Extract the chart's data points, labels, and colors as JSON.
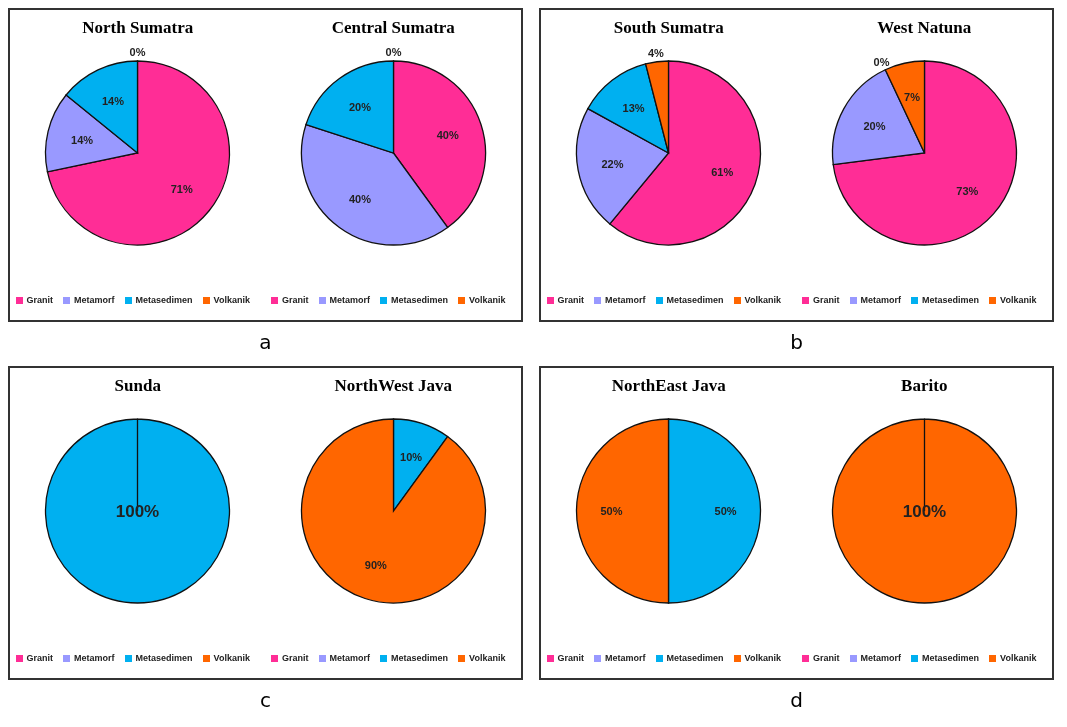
{
  "chart_data": [
    {
      "type": "pie",
      "title": "North Sumatra",
      "categories": [
        "Granit",
        "Metamorf",
        "Metasedimen",
        "Volkanik"
      ],
      "values": [
        71,
        14,
        14,
        0
      ],
      "value_labels": [
        "71%",
        "14%",
        "14%",
        "0%"
      ],
      "colors": [
        "#ff2d96",
        "#9999ff",
        "#00b0f0",
        "#ff6600"
      ],
      "legend": "bottom",
      "annotations": [
        "a"
      ]
    },
    {
      "type": "pie",
      "title": "Central Sumatra",
      "categories": [
        "Granit",
        "Metamorf",
        "Metasedimen",
        "Volkanik"
      ],
      "values": [
        40,
        40,
        20,
        0
      ],
      "value_labels": [
        "40%",
        "40%",
        "20%",
        "0%"
      ],
      "colors": [
        "#ff2d96",
        "#9999ff",
        "#00b0f0",
        "#ff6600"
      ],
      "legend": "bottom"
    },
    {
      "type": "pie",
      "title": "South Sumatra",
      "categories": [
        "Granit",
        "Metamorf",
        "Metasedimen",
        "Volkanik"
      ],
      "values": [
        61,
        22,
        13,
        4
      ],
      "value_labels": [
        "61%",
        "22%",
        "13%",
        "4%"
      ],
      "colors": [
        "#ff2d96",
        "#9999ff",
        "#00b0f0",
        "#ff6600"
      ],
      "legend": "bottom",
      "annotations": [
        "b"
      ]
    },
    {
      "type": "pie",
      "title": "West Natuna",
      "categories": [
        "Granit",
        "Metamorf",
        "Metasedimen",
        "Volkanik"
      ],
      "values": [
        73,
        20,
        0,
        7
      ],
      "value_labels": [
        "73%",
        "20%",
        "0%",
        "7%"
      ],
      "colors": [
        "#ff2d96",
        "#9999ff",
        "#00b0f0",
        "#ff6600"
      ],
      "legend": "bottom"
    },
    {
      "type": "pie",
      "title": "Sunda",
      "categories": [
        "Granit",
        "Metamorf",
        "Metasedimen",
        "Volkanik"
      ],
      "values": [
        0,
        0,
        100,
        0
      ],
      "value_labels": [
        null,
        null,
        "100%",
        null
      ],
      "colors": [
        "#ff2d96",
        "#9999ff",
        "#00b0f0",
        "#ff6600"
      ],
      "legend": "bottom",
      "annotations": [
        "c"
      ]
    },
    {
      "type": "pie",
      "title": "NorthWest Java",
      "categories": [
        "Granit",
        "Metamorf",
        "Metasedimen",
        "Volkanik"
      ],
      "values": [
        0,
        0,
        10,
        90
      ],
      "value_labels": [
        null,
        null,
        "10%",
        "90%"
      ],
      "colors": [
        "#ff2d96",
        "#9999ff",
        "#00b0f0",
        "#ff6600"
      ],
      "legend": "bottom"
    },
    {
      "type": "pie",
      "title": "NorthEast Java",
      "categories": [
        "Granit",
        "Metamorf",
        "Metasedimen",
        "Volkanik"
      ],
      "values": [
        0,
        0,
        50,
        50
      ],
      "value_labels": [
        null,
        null,
        "50%",
        "50%"
      ],
      "colors": [
        "#ff2d96",
        "#9999ff",
        "#00b0f0",
        "#ff6600"
      ],
      "legend": "bottom",
      "annotations": [
        "d"
      ]
    },
    {
      "type": "pie",
      "title": "Barito",
      "categories": [
        "Granit",
        "Metamorf",
        "Metasedimen",
        "Volkanik"
      ],
      "values": [
        0,
        0,
        0,
        100
      ],
      "value_labels": [
        null,
        null,
        null,
        "100%"
      ],
      "colors": [
        "#ff2d96",
        "#9999ff",
        "#00b0f0",
        "#ff6600"
      ],
      "legend": "bottom"
    }
  ]
}
